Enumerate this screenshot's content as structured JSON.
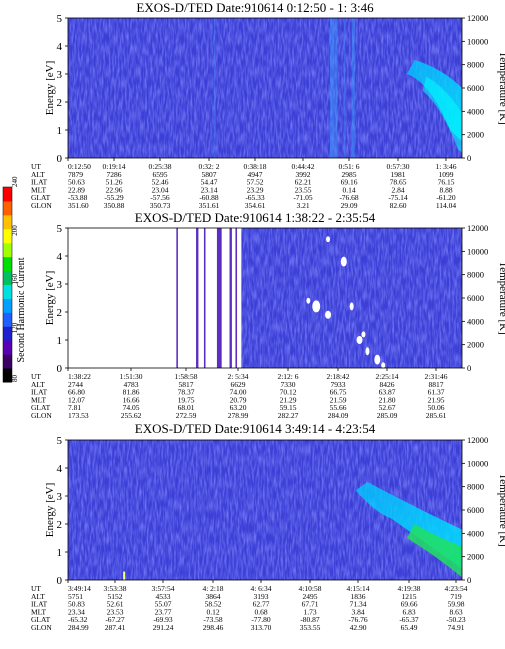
{
  "colorbar": {
    "label": "Second Harmonic Current",
    "ticks": [
      "80",
      "120",
      "160",
      "200",
      "240"
    ],
    "colors": [
      "#000000",
      "#3a0064",
      "#5a00b4",
      "#2020d0",
      "#2060ff",
      "#00a0ff",
      "#00e0e0",
      "#00c060",
      "#00e000",
      "#a0ff00",
      "#ffff00",
      "#ffc000",
      "#ff6000",
      "#ff0000"
    ]
  },
  "chart_data": [
    {
      "type": "heatmap",
      "title": "EXOS-D/TED   Date:910614   0:12:50 -  1: 3:46",
      "ylabel": "Energy [eV]",
      "y2label": "Temperature [K]",
      "ylim": [
        0,
        5
      ],
      "yticks": [
        "0",
        "1",
        "2",
        "3",
        "4",
        "5"
      ],
      "y2lim": [
        0,
        12000
      ],
      "y2ticks": [
        "0",
        "2000",
        "4000",
        "6000",
        "8000",
        "10000",
        "12000"
      ],
      "row_labels": [
        "UT",
        "ALT",
        "ILAT",
        "MLT",
        "GLAT",
        "GLON"
      ],
      "columns": [
        [
          "0:12:50",
          "7879",
          "50.63",
          "22.89",
          "-53.88",
          "351.60"
        ],
        [
          "0:19:14",
          "7286",
          "51.26",
          "22.96",
          "-55.29",
          "350.88"
        ],
        [
          "0:25:38",
          "6595",
          "52.46",
          "23.04",
          "-57.56",
          "350.73"
        ],
        [
          "0:32: 2",
          "5807",
          "54.47",
          "23.14",
          "-60.88",
          "351.61"
        ],
        [
          "0:38:18",
          "4947",
          "57.52",
          "23.29",
          "-65.33",
          "354.61"
        ],
        [
          "0:44:42",
          "3992",
          "62.21",
          "23.55",
          "-71.05",
          "3.21"
        ],
        [
          "0:51: 6",
          "2985",
          "69.16",
          "0.14",
          "-76.68",
          "29.09"
        ],
        [
          "0:57:30",
          "1981",
          "78.65",
          "2.84",
          "-75.14",
          "82.60"
        ],
        [
          "1: 3:46",
          "1099",
          "76.15",
          "8.88",
          "-61.20",
          "114.04"
        ]
      ]
    },
    {
      "type": "heatmap",
      "title": "EXOS-D/TED   Date:910614   1:38:22 -  2:35:54",
      "ylabel": "Energy [eV]",
      "y2label": "Temperature [K]",
      "ylim": [
        0,
        5
      ],
      "yticks": [
        "0",
        "1",
        "2",
        "3",
        "4",
        "5"
      ],
      "y2lim": [
        0,
        12000
      ],
      "y2ticks": [
        "0",
        "2000",
        "4000",
        "6000",
        "8000",
        "10000",
        "12000"
      ],
      "row_labels": [
        "UT",
        "ALT",
        "ILAT",
        "MLT",
        "GLAT",
        "GLON"
      ],
      "columns": [
        [
          "1:38:22",
          "2744",
          "66.80",
          "12.07",
          "7.81",
          "173.53"
        ],
        [
          "1:51:30",
          "4783",
          "81.86",
          "16.66",
          "74.05",
          "255.62"
        ],
        [
          "1:58:58",
          "5817",
          "78.37",
          "19.75",
          "68.01",
          "272.59"
        ],
        [
          "2: 5:34",
          "6629",
          "74.00",
          "20.79",
          "63.20",
          "278.99"
        ],
        [
          "2:12: 6",
          "7330",
          "70.12",
          "21.29",
          "59.15",
          "282.27"
        ],
        [
          "2:18:42",
          "7933",
          "66.75",
          "21.59",
          "55.66",
          "284.09"
        ],
        [
          "2:25:14",
          "8426",
          "63.87",
          "21.80",
          "52.67",
          "285.09"
        ],
        [
          "2:31:46",
          "8817",
          "61.37",
          "21.95",
          "50.06",
          "285.61"
        ]
      ]
    },
    {
      "type": "heatmap",
      "title": "EXOS-D/TED   Date:910614   3:49:14 -  4:23:54",
      "ylabel": "Energy [eV]",
      "y2label": "Temperature [K]",
      "ylim": [
        0,
        5
      ],
      "yticks": [
        "0",
        "1",
        "2",
        "3",
        "4",
        "5"
      ],
      "y2lim": [
        0,
        12000
      ],
      "y2ticks": [
        "0",
        "2000",
        "4000",
        "6000",
        "8000",
        "10000",
        "12000"
      ],
      "row_labels": [
        "UT",
        "ALT",
        "ILAT",
        "MLT",
        "GLAT",
        "GLON"
      ],
      "columns": [
        [
          "3:49:14",
          "5751",
          "50.83",
          "23.34",
          "-65.32",
          "284.99"
        ],
        [
          "3:53:38",
          "5152",
          "52.61",
          "23.53",
          "-67.27",
          "287.41"
        ],
        [
          "3:57:54",
          "4533",
          "55.07",
          "23.77",
          "-69.93",
          "291.24"
        ],
        [
          "4: 2:18",
          "3864",
          "58.52",
          "0.12",
          "-73.58",
          "298.46"
        ],
        [
          "4: 6:34",
          "3193",
          "62.77",
          "0.68",
          "-77.80",
          "313.70"
        ],
        [
          "4:10:58",
          "2495",
          "67.71",
          "1.73",
          "-80.87",
          "353.55"
        ],
        [
          "4:15:14",
          "1836",
          "71.34",
          "3.84",
          "-76.76",
          "42.90"
        ],
        [
          "4:19:38",
          "1215",
          "69.66",
          "6.83",
          "-65.37",
          "65.49"
        ],
        [
          "4:23:54",
          "719",
          "59.98",
          "8.63",
          "-50.23",
          "74.91"
        ]
      ]
    }
  ]
}
